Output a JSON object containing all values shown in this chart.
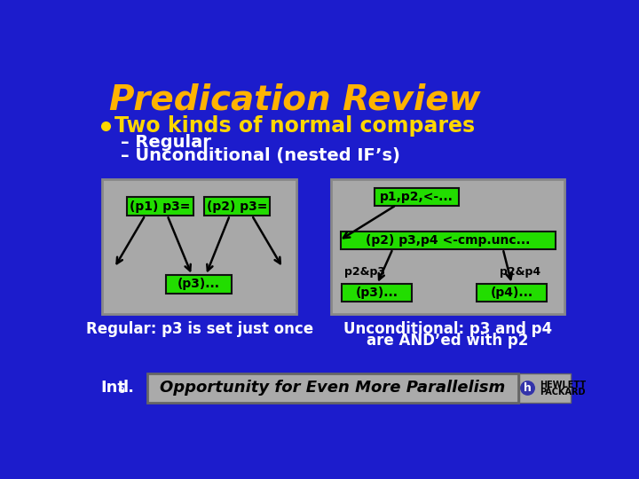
{
  "bg_color": "#1C1CCC",
  "title": "Predication Review",
  "title_color": "#FFB300",
  "title_fontsize": 28,
  "bullet_color": "#FFD700",
  "bullet_text": "Two kinds of normal compares",
  "bullet_fontsize": 17,
  "sub_bullets": [
    "– Regular",
    "– Unconditional (nested IF’s)"
  ],
  "sub_bullet_color": "#FFFFFF",
  "sub_bullet_fontsize": 14,
  "green_box_color": "#22DD00",
  "green_box_text_color": "#000000",
  "gray_box_color": "#A8A8A8",
  "gray_box_edge": "#888888",
  "left_caption": "Regular: p3 is set just once",
  "right_caption_line1": "Unconditional: p3 and p4",
  "right_caption_line2": "are AND’ed with p2",
  "caption_color": "#FFFFFF",
  "caption_fontsize": 12,
  "footer_bg": "#AAAAAA",
  "footer_text": "Opportunity for Even More Parallelism",
  "footer_fontsize": 13,
  "hp_text1": "HEWLETT",
  "hp_text2": "PACKARD"
}
